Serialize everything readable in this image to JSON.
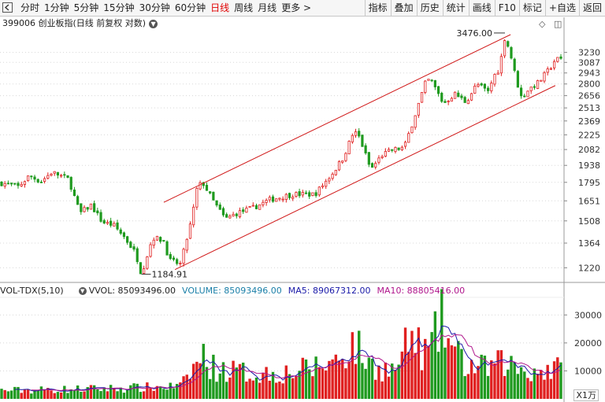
{
  "toolbar": {
    "periods": [
      {
        "label": "分时",
        "active": false
      },
      {
        "label": "1分钟",
        "active": false
      },
      {
        "label": "5分钟",
        "active": false
      },
      {
        "label": "15分钟",
        "active": false
      },
      {
        "label": "30分钟",
        "active": false
      },
      {
        "label": "60分钟",
        "active": false
      },
      {
        "label": "日线",
        "active": true
      },
      {
        "label": "周线",
        "active": false
      },
      {
        "label": "月线",
        "active": false
      },
      {
        "label": "更多 >",
        "active": false
      }
    ],
    "buttons": [
      "指标",
      "叠加",
      "历史",
      "统计",
      "画线",
      "F10",
      "标记",
      "+自选",
      "返回"
    ]
  },
  "price_panel": {
    "title": "399006 创业板指(日线 前复权 对数)",
    "high_label": "3476.00",
    "low_label": "1184.91",
    "y_ticks": [
      "3230",
      "3087",
      "2943",
      "2800",
      "2656",
      "2513",
      "2369",
      "2225",
      "2082",
      "1938",
      "1795",
      "1651",
      "1508",
      "1364",
      "1220"
    ]
  },
  "volume_panel": {
    "indicator": "VOL-TDX(5,10)",
    "vvol": "VVOL: 85093496.00",
    "volume": "VOLUME: 85093496.00",
    "ma5": "MA5: 89067312.00",
    "ma10": "MA10: 88805416.00",
    "y_ticks": [
      "30000",
      "20000",
      "10000"
    ],
    "unit": "X1万"
  },
  "colors": {
    "up": "#e02020",
    "down": "#1f9a1f",
    "ma5": "#1a1aa8",
    "ma10": "#b0168c",
    "channel": "#d01818",
    "active_tab": "#e00000"
  },
  "chart_data": {
    "type": "candlestick",
    "scale": "log",
    "price_range": [
      1150,
      3550
    ],
    "price_points_approx": [
      {
        "x": 0,
        "v": 1790
      },
      {
        "x": 3,
        "v": 1760
      },
      {
        "x": 5,
        "v": 1850
      },
      {
        "x": 7,
        "v": 1800
      },
      {
        "x": 9,
        "v": 1880
      },
      {
        "x": 12,
        "v": 1820
      },
      {
        "x": 14,
        "v": 1560
      },
      {
        "x": 16,
        "v": 1620
      },
      {
        "x": 18,
        "v": 1500
      },
      {
        "x": 20,
        "v": 1480
      },
      {
        "x": 22,
        "v": 1400
      },
      {
        "x": 24,
        "v": 1300
      },
      {
        "x": 25,
        "v": 1185
      },
      {
        "x": 27,
        "v": 1400
      },
      {
        "x": 29,
        "v": 1380
      },
      {
        "x": 30,
        "v": 1260
      },
      {
        "x": 32,
        "v": 1240
      },
      {
        "x": 34,
        "v": 1520
      },
      {
        "x": 35,
        "v": 1760
      },
      {
        "x": 36,
        "v": 1790
      },
      {
        "x": 38,
        "v": 1640
      },
      {
        "x": 40,
        "v": 1520
      },
      {
        "x": 42,
        "v": 1560
      },
      {
        "x": 45,
        "v": 1600
      },
      {
        "x": 48,
        "v": 1660
      },
      {
        "x": 52,
        "v": 1700
      },
      {
        "x": 56,
        "v": 1700
      },
      {
        "x": 59,
        "v": 1860
      },
      {
        "x": 61,
        "v": 2000
      },
      {
        "x": 63,
        "v": 2260
      },
      {
        "x": 64,
        "v": 2200
      },
      {
        "x": 66,
        "v": 1900
      },
      {
        "x": 68,
        "v": 2030
      },
      {
        "x": 70,
        "v": 2080
      },
      {
        "x": 72,
        "v": 2100
      },
      {
        "x": 74,
        "v": 2450
      },
      {
        "x": 76,
        "v": 2860
      },
      {
        "x": 77,
        "v": 2820
      },
      {
        "x": 79,
        "v": 2560
      },
      {
        "x": 81,
        "v": 2680
      },
      {
        "x": 83,
        "v": 2580
      },
      {
        "x": 85,
        "v": 2800
      },
      {
        "x": 87,
        "v": 2700
      },
      {
        "x": 88,
        "v": 2900
      },
      {
        "x": 89,
        "v": 3000
      },
      {
        "x": 90,
        "v": 3476
      },
      {
        "x": 91,
        "v": 3200
      },
      {
        "x": 92,
        "v": 2860
      },
      {
        "x": 93,
        "v": 2620
      },
      {
        "x": 94,
        "v": 2720
      },
      {
        "x": 96,
        "v": 2820
      },
      {
        "x": 98,
        "v": 3000
      },
      {
        "x": 99,
        "v": 3130
      }
    ],
    "channel_upper": [
      {
        "x": 29,
        "v": 1640
      },
      {
        "x": 91,
        "v": 3500
      }
    ],
    "channel_lower": [
      {
        "x": 31,
        "v": 1210
      },
      {
        "x": 99,
        "v": 2780
      }
    ],
    "volume_range": [
      0,
      36000
    ],
    "volume_points_approx": [
      {
        "x": 0,
        "v": 3000
      },
      {
        "x": 14,
        "v": 3500
      },
      {
        "x": 25,
        "v": 4000
      },
      {
        "x": 32,
        "v": 4500
      },
      {
        "x": 34,
        "v": 10500
      },
      {
        "x": 36,
        "v": 15500
      },
      {
        "x": 38,
        "v": 11000
      },
      {
        "x": 45,
        "v": 9000
      },
      {
        "x": 52,
        "v": 9500
      },
      {
        "x": 59,
        "v": 13000
      },
      {
        "x": 63,
        "v": 20000
      },
      {
        "x": 66,
        "v": 12000
      },
      {
        "x": 70,
        "v": 10000
      },
      {
        "x": 73,
        "v": 22000
      },
      {
        "x": 76,
        "v": 16000
      },
      {
        "x": 79,
        "v": 29000
      },
      {
        "x": 80,
        "v": 20000
      },
      {
        "x": 83,
        "v": 12000
      },
      {
        "x": 86,
        "v": 11000
      },
      {
        "x": 90,
        "v": 13000
      },
      {
        "x": 94,
        "v": 10000
      },
      {
        "x": 99,
        "v": 10500
      }
    ]
  }
}
